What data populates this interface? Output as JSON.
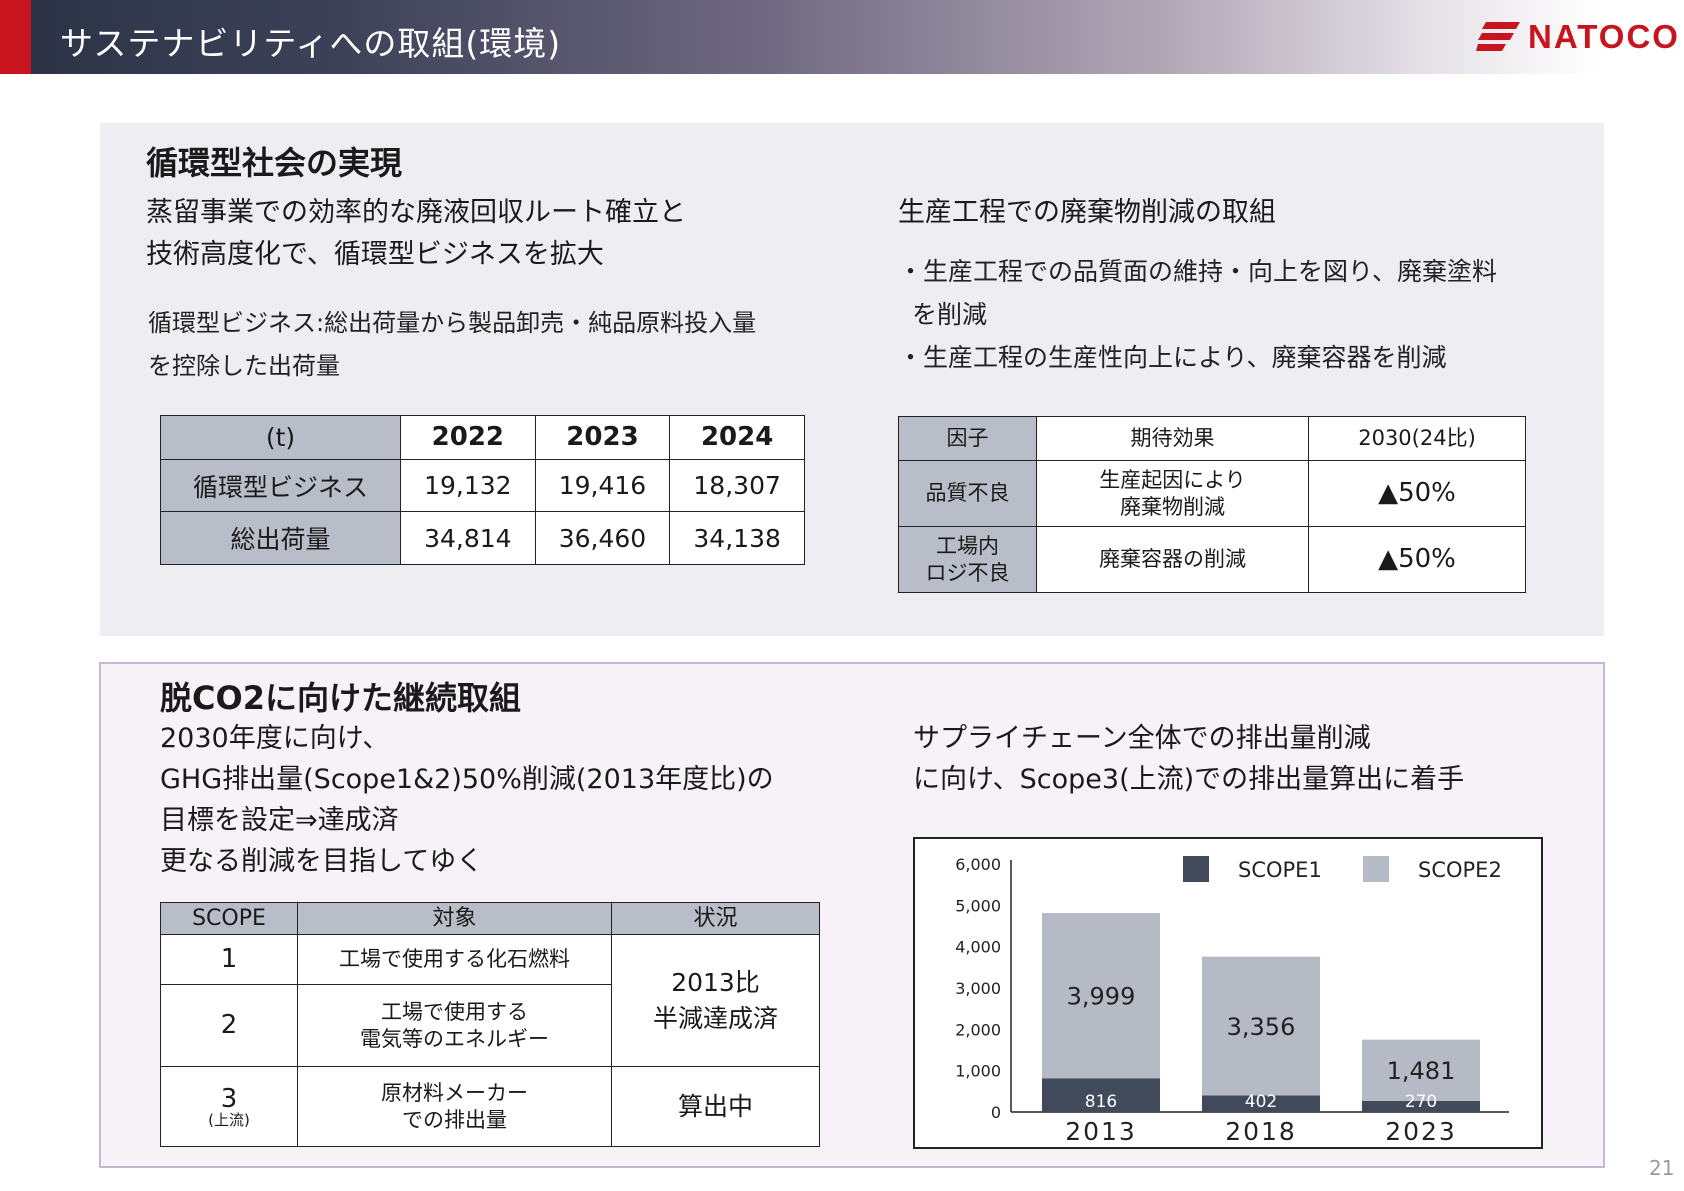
{
  "header": {
    "title": "サステナビリティへの取組(環境)",
    "logo_text": "NATOCO",
    "accent_color": "#c8141e"
  },
  "section1": {
    "heading": "循環型社会の実現",
    "subheading_line1": "蒸留事業での効率的な廃液回収ルート確立と",
    "subheading_line2": "技術高度化で、循環型ビジネスを拡大",
    "note_line1": "循環型ビジネス:総出荷量から製品卸売・純品原料投入量",
    "note_line2": "を控除した出荷量",
    "table": {
      "unit": "(t)",
      "years": [
        "2022",
        "2023",
        "2024"
      ],
      "rows": [
        {
          "label": "循環型ビジネス",
          "values": [
            "19,132",
            "19,416",
            "18,307"
          ]
        },
        {
          "label": "総出荷量",
          "values": [
            "34,814",
            "36,460",
            "34,138"
          ]
        }
      ]
    },
    "right": {
      "heading": "生産工程での廃棄物削減の取組",
      "bullet1_line1": "・生産工程での品質面の維持・向上を図り、廃棄塗料",
      "bullet1_line2": "を削減",
      "bullet2": "・生産工程の生産性向上により、廃棄容器を削減",
      "table": {
        "headers": [
          "因子",
          "期待効果",
          "2030(24比)"
        ],
        "rows": [
          {
            "factor": "品質不良",
            "effect_line1": "生産起因により",
            "effect_line2": "廃棄物削減",
            "target": "▲50%"
          },
          {
            "factor_line1": "工場内",
            "factor_line2": "ロジ不良",
            "effect": "廃棄容器の削減",
            "target": "▲50%"
          }
        ]
      }
    }
  },
  "section2": {
    "heading": "脱CO2に向けた継続取組",
    "lines": [
      "2030年度に向け、",
      "GHG排出量(Scope1&2)50%削減(2013年度比)の",
      "目標を設定⇒達成済",
      "更なる削減を目指してゆく"
    ],
    "table": {
      "headers": [
        "SCOPE",
        "対象",
        "状況"
      ],
      "rows": [
        {
          "scope": "1",
          "target": "工場で使用する化石燃料"
        },
        {
          "scope": "2",
          "target_line1": "工場で使用する",
          "target_line2": "電気等のエネルギー"
        },
        {
          "scope": "3",
          "scope_note": "(上流)",
          "target_line1": "原材料メーカー",
          "target_line2": "での排出量",
          "status": "算出中"
        }
      ],
      "merged_status_line1": "2013比",
      "merged_status_line2": "半減達成済"
    },
    "right": {
      "line1": "サプライチェーン全体での排出量削減",
      "line2": "に向け、Scope3(上流)での排出量算出に着手"
    }
  },
  "chart_data": {
    "type": "bar",
    "stacked": true,
    "categories": [
      "2013",
      "2018",
      "2023"
    ],
    "series": [
      {
        "name": "SCOPE1",
        "values": [
          816,
          402,
          270
        ],
        "color": "#414a5a"
      },
      {
        "name": "SCOPE2",
        "values": [
          3999,
          3356,
          1481
        ],
        "color": "#b6bac4"
      }
    ],
    "ylim": [
      0,
      6000
    ],
    "yticks": [
      "0",
      "1,000",
      "2,000",
      "3,000",
      "4,000",
      "5,000",
      "6,000"
    ],
    "ytick_values": [
      0,
      1000,
      2000,
      3000,
      4000,
      5000,
      6000
    ],
    "data_labels": {
      "SCOPE1": [
        "816",
        "402",
        "270"
      ],
      "SCOPE2": [
        "3,999",
        "3,356",
        "1,481"
      ]
    },
    "legend_position": "top-right",
    "grid": false
  },
  "page_number": "21"
}
